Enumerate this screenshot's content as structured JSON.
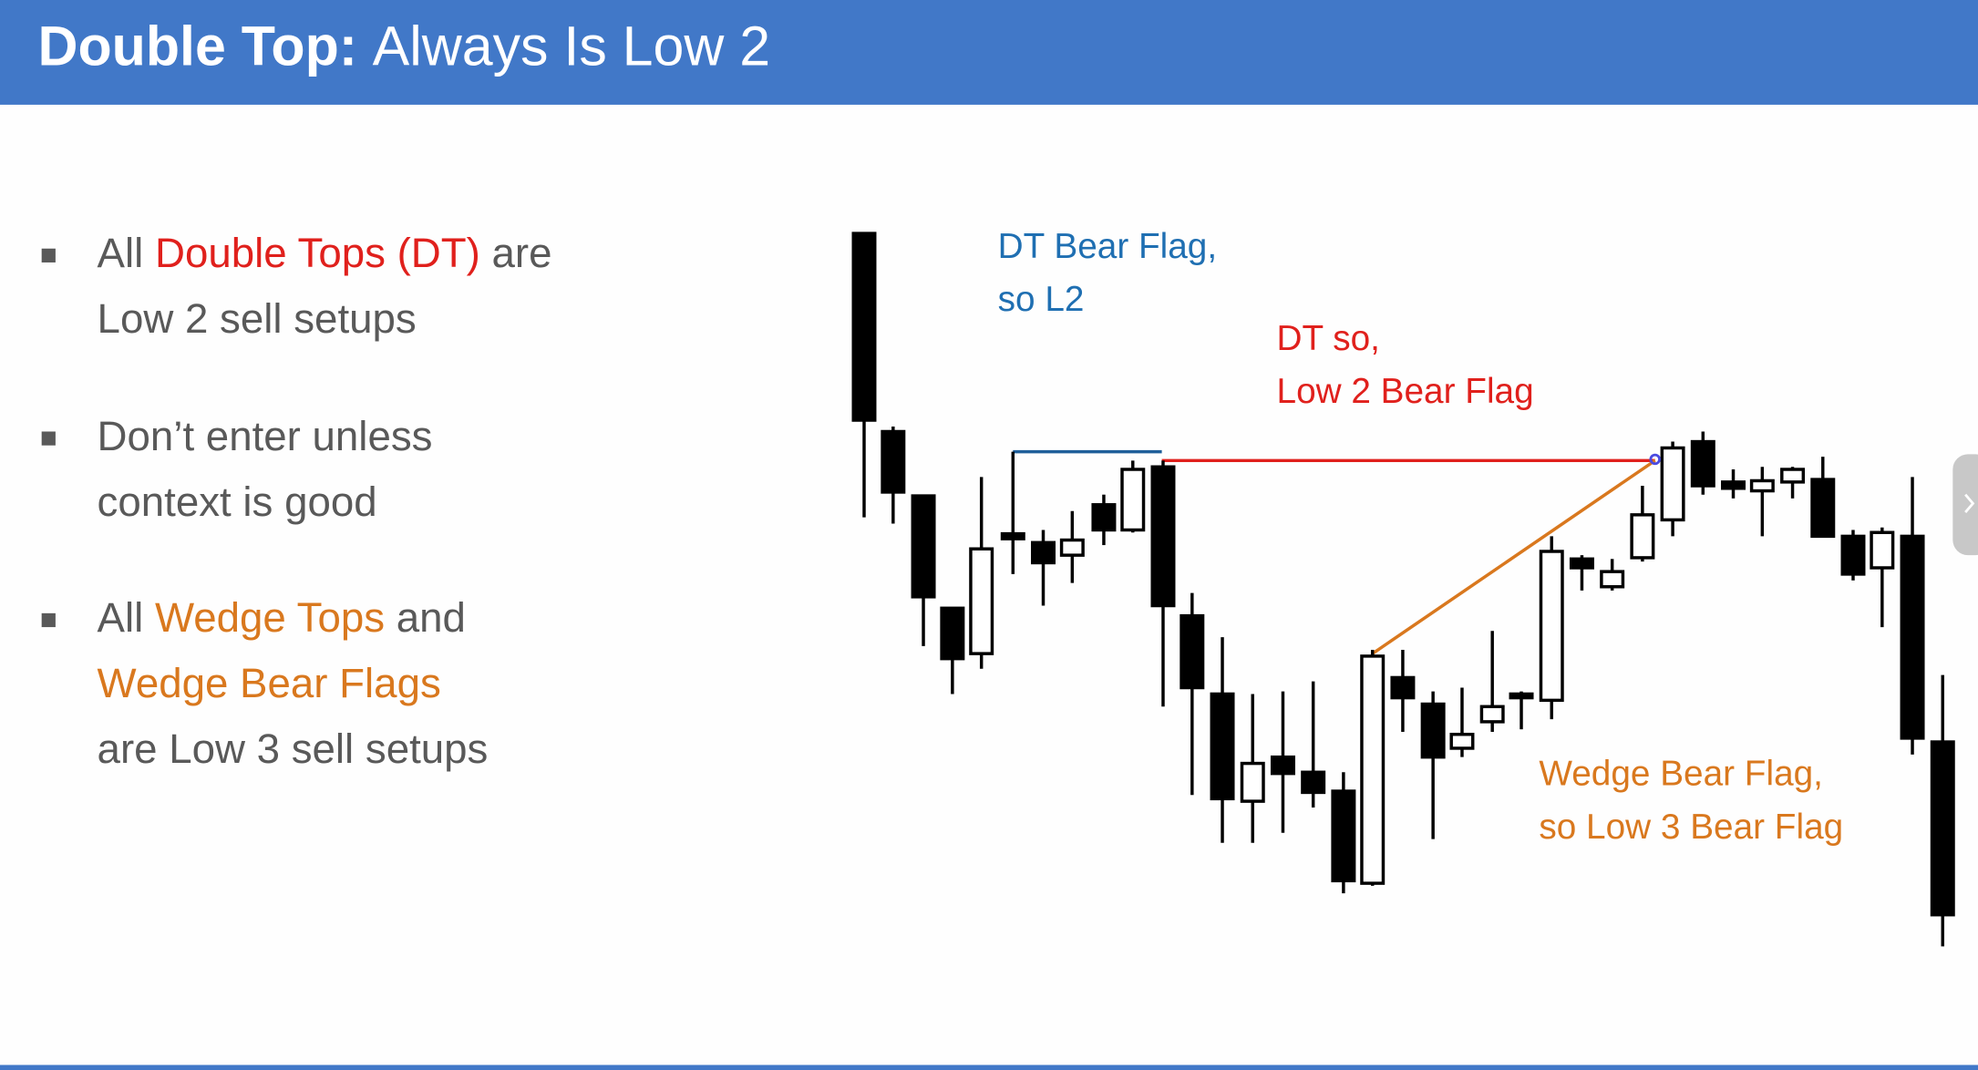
{
  "header": {
    "title_bold": "Double Top:",
    "title_rest": "Always Is Low 2"
  },
  "bullets": [
    {
      "lines": [
        [
          {
            "text": "All "
          },
          {
            "text": "Double Tops (DT)",
            "color": "#e0201c"
          },
          {
            "text": " are"
          }
        ],
        [
          {
            "text": "Low 2 sell setups"
          }
        ]
      ]
    },
    {
      "lines": [
        [
          {
            "text": "Don’t enter unless"
          }
        ],
        [
          {
            "text": "context is good"
          }
        ]
      ]
    },
    {
      "lines": [
        [
          {
            "text": "All "
          },
          {
            "text": "Wedge Tops",
            "color": "#d9781e"
          },
          {
            "text": " and"
          }
        ],
        [
          {
            "text": "Wedge Bear Flags",
            "color": "#d9781e"
          }
        ],
        [
          {
            "text": "are Low 3 sell setups"
          }
        ]
      ]
    }
  ],
  "annotations": [
    {
      "lines": [
        "DT Bear Flag,",
        "so L2"
      ],
      "color": "#1f6fb2"
    },
    {
      "lines": [
        "DT so,",
        "Low 2 Bear Flag"
      ],
      "color": "#e0201c"
    },
    {
      "lines": [
        "Wedge Bear Flag,",
        "so Low 3 Bear Flag"
      ],
      "color": "#d9781e"
    }
  ]
}
